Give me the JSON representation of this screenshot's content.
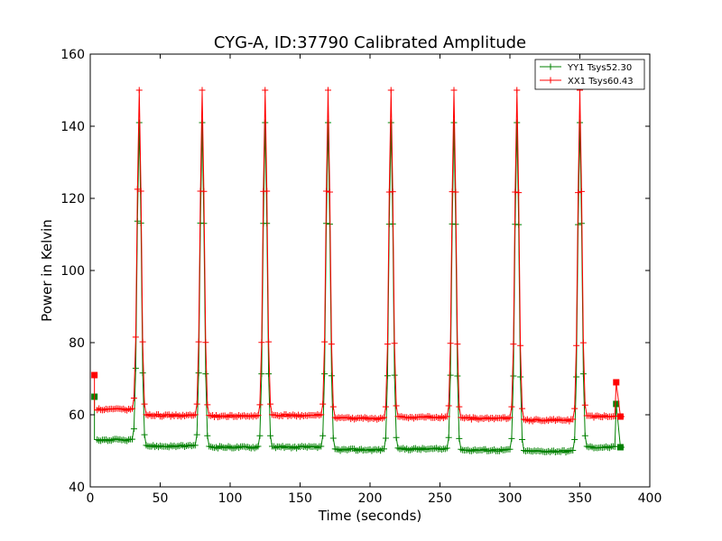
{
  "chart_data": {
    "type": "line",
    "title": "CYG-A, ID:37790 Calibrated Amplitude",
    "xlabel": "Time (seconds)",
    "ylabel": "Power in Kelvin",
    "xlim": [
      0,
      400
    ],
    "ylim": [
      40,
      160
    ],
    "xticks": [
      0,
      50,
      100,
      150,
      200,
      250,
      300,
      350,
      400
    ],
    "yticks": [
      40,
      60,
      80,
      100,
      120,
      140,
      160
    ],
    "grid": false,
    "legend_position": "top-right",
    "series": [
      {
        "name": "YY1 Tsys52.30",
        "color": "#008000",
        "baselines": [
          53,
          51.3,
          51,
          51,
          50.3,
          50.5,
          50.2,
          49.9,
          51
        ],
        "peaks": [
          35,
          80,
          125,
          170,
          215,
          260,
          305,
          350
        ],
        "peak_height": 141,
        "squares": [
          {
            "x": 3,
            "y": 65
          },
          {
            "x": 376,
            "y": 63
          },
          {
            "x": 379,
            "y": 51
          }
        ]
      },
      {
        "name": "XX1 Tsys60.43",
        "color": "#ff0000",
        "baselines": [
          61.5,
          59.8,
          59.6,
          59.8,
          59.0,
          59.3,
          59.0,
          58.5,
          59.5
        ],
        "peaks": [
          35,
          80,
          125,
          170,
          215,
          260,
          305,
          350
        ],
        "peak_height": 150,
        "squares": [
          {
            "x": 3,
            "y": 71
          },
          {
            "x": 376,
            "y": 69
          },
          {
            "x": 379,
            "y": 59.5
          }
        ]
      }
    ]
  }
}
